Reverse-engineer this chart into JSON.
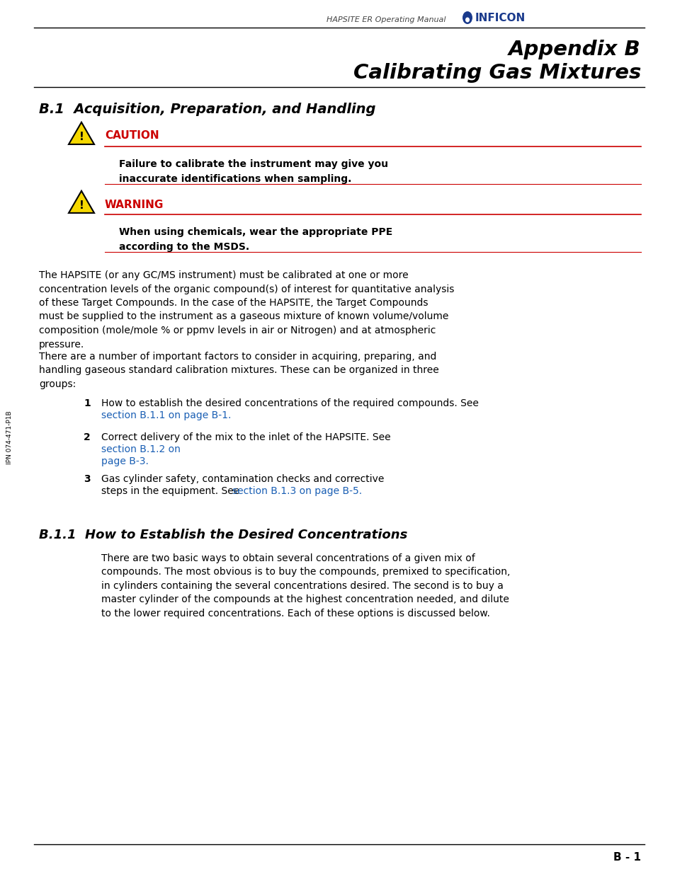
{
  "bg_color": "#ffffff",
  "header_manual": "HAPSITE ER Operating Manual",
  "appendix_title_line1": "Appendix B",
  "appendix_title_line2": "Calibrating Gas Mixtures",
  "section_title": "B.1  Acquisition, Preparation, and Handling",
  "caution_label": "CAUTION",
  "caution_text": "Failure to calibrate the instrument may give you\ninaccurate identifications when sampling.",
  "warning_label": "WARNING",
  "warning_text": "When using chemicals, wear the appropriate PPE\naccording to the MSDS.",
  "body_para1": "The HAPSITE (or any GC/MS instrument) must be calibrated at one or more\nconcentration levels of the organic compound(s) of interest for quantitative analysis\nof these Target Compounds. In the case of the HAPSITE, the Target Compounds\nmust be supplied to the instrument as a gaseous mixture of known volume/volume\ncomposition (mole/mole % or ppmv levels in air or Nitrogen) and at atmospheric\npressure.",
  "body_para2": "There are a number of important factors to consider in acquiring, preparing, and\nhandling gaseous standard calibration mixtures. These can be organized in three\ngroups:",
  "list_item1_text": "How to establish the desired concentrations of the required compounds. See ",
  "list_item1_link": "section B.1.1 on page B-1",
  "list_item1_suffix": ".",
  "list_item2_text": "Correct delivery of the mix to the inlet of the HAPSITE. See ",
  "list_item2_link": "section B.1.2 on page B-3",
  "list_item2_suffix": ".",
  "list_item3_text": "Gas cylinder safety, contamination checks and corrective\nsteps in the equipment. See ",
  "list_item3_link": "section B.1.3 on page B-5",
  "list_item3_suffix": ".",
  "subsection_title": "B.1.1  How to Establish the Desired Concentrations",
  "subsection_para": "There are two basic ways to obtain several concentrations of a given mix of\ncompounds. The most obvious is to buy the compounds, premixed to specification,\nin cylinders containing the several concentrations desired. The second is to buy a\nmaster cylinder of the compounds at the highest concentration needed, and dilute\nto the lower required concentrations. Each of these options is discussed below.",
  "footer_text": "B - 1",
  "side_text": "IPN 074-471-P1B",
  "link_color": "#1a5fb4",
  "red_color": "#cc0000",
  "black_color": "#000000",
  "triangle_fill": "#f5d800",
  "triangle_edge": "#000000",
  "inficon_color": "#1a3a8c"
}
